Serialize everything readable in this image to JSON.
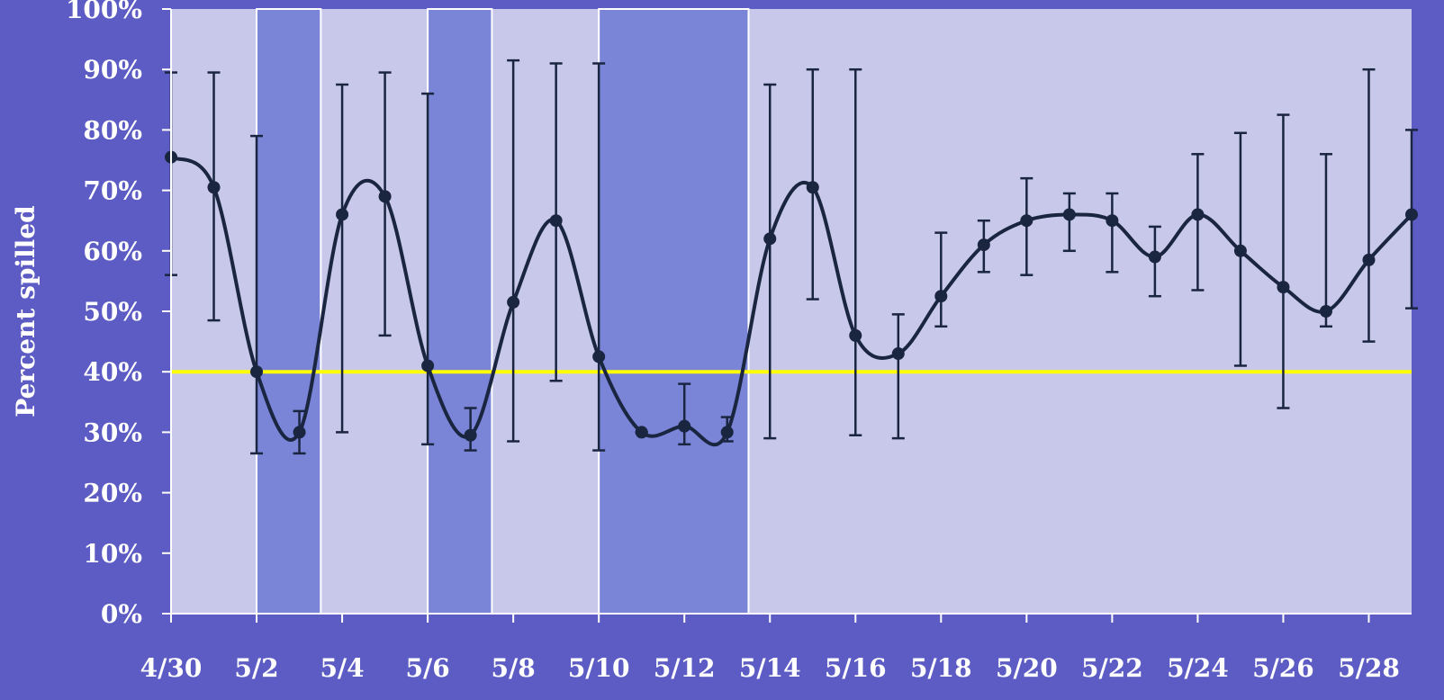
{
  "chart_data": {
    "type": "line",
    "ylabel": "Percent spilled",
    "xlabel": "",
    "ylim": [
      0,
      100
    ],
    "y_ticks": [
      "0%",
      "10%",
      "20%",
      "30%",
      "40%",
      "50%",
      "60%",
      "70%",
      "80%",
      "90%",
      "100%"
    ],
    "x_ticks": [
      "4/30",
      "5/2",
      "5/4",
      "5/6",
      "5/8",
      "5/10",
      "5/12",
      "5/14",
      "5/16",
      "5/18",
      "5/20",
      "5/22",
      "5/24",
      "5/26",
      "5/28"
    ],
    "x_range": [
      "4/30",
      "5/29"
    ],
    "x": [
      "4/30",
      "5/1",
      "5/2",
      "5/3",
      "5/4",
      "5/5",
      "5/6",
      "5/7",
      "5/8",
      "5/9",
      "5/10",
      "5/11",
      "5/12",
      "5/13",
      "5/14",
      "5/15",
      "5/16",
      "5/17",
      "5/18",
      "5/19",
      "5/20",
      "5/21",
      "5/22",
      "5/23",
      "5/24",
      "5/25",
      "5/26",
      "5/27",
      "5/28",
      "5/29"
    ],
    "series": [
      {
        "values": [
          75.5,
          70.5,
          40,
          30,
          66,
          69,
          41,
          29.5,
          51.5,
          65,
          42.5,
          30,
          31,
          30,
          62,
          70.5,
          46,
          43,
          52.5,
          61,
          65,
          66,
          65,
          59,
          66,
          60,
          54,
          50,
          58.5,
          66
        ],
        "error_low": [
          56,
          48.5,
          26.5,
          26.5,
          30,
          46,
          28,
          27,
          28.5,
          38.5,
          27,
          30,
          28,
          28.5,
          29,
          52,
          29.5,
          29,
          47.5,
          56.5,
          56,
          60,
          56.5,
          52.5,
          53.5,
          41,
          34,
          47.5,
          45,
          50.5
        ],
        "error_high": [
          89.5,
          89.5,
          79,
          33.5,
          87.5,
          89.5,
          86,
          34,
          91.5,
          91,
          91,
          30,
          38,
          32.5,
          87.5,
          90,
          90,
          49.5,
          63,
          65,
          72,
          69.5,
          69.5,
          64,
          76,
          79.5,
          82.5,
          76,
          90,
          80
        ]
      }
    ],
    "reference_line": {
      "value": 40,
      "color": "#ffff00"
    },
    "shaded_ranges": [
      {
        "from": "5/2",
        "to": "5/3",
        "color": "#7a85d8"
      },
      {
        "from": "5/6",
        "to": "5/7",
        "color": "#7a85d8"
      },
      {
        "from": "5/10",
        "to": "5/13",
        "color": "#7a85d8"
      }
    ],
    "colors": {
      "background": "#5c5cc4",
      "plot_area": "#c8c8eb",
      "line": "#1a2540",
      "axis": "#ffffff"
    },
    "grid": false,
    "legend": "none"
  }
}
